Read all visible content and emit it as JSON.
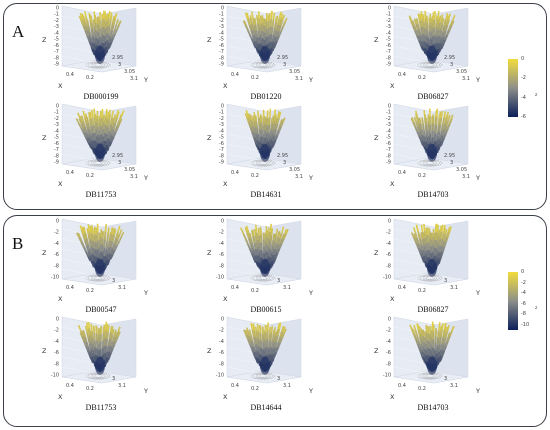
{
  "panels": [
    {
      "letter": "A",
      "colorbar": {
        "ticks": [
          "0",
          "-2",
          "-4",
          "-6"
        ],
        "ticks_full": [
          0,
          -2,
          -4,
          -6
        ],
        "label": "z",
        "range": [
          -6,
          0
        ]
      },
      "grid_axes": {
        "z_label": "Z",
        "x_label": "X",
        "y_label": "Y",
        "z_ticks": [
          "0",
          "-1",
          "-2",
          "-3",
          "-4",
          "-5",
          "-6",
          "-7",
          "-8",
          "-9"
        ],
        "x_ticks": [
          "0.4",
          "0.2"
        ],
        "y_ticks": [
          "2.95",
          "3",
          "3.05",
          "3.1"
        ]
      },
      "cells": [
        {
          "name": "DB000199"
        },
        {
          "name": "DB01220"
        },
        {
          "name": "DB06827"
        },
        {
          "name": "DB11753"
        },
        {
          "name": "DB14631"
        },
        {
          "name": "DB14703"
        }
      ]
    },
    {
      "letter": "B",
      "colorbar": {
        "ticks": [
          "0",
          "-2",
          "-4",
          "-6",
          "-8",
          "-10"
        ],
        "label": "z",
        "range": [
          -11,
          0
        ]
      },
      "grid_axes": {
        "z_label": "Z",
        "x_label": "X",
        "y_label": "Y",
        "z_ticks": [
          "0",
          "-2",
          "-4",
          "-6",
          "-8",
          "-10"
        ],
        "x_ticks": [
          "0.4",
          "0.2"
        ],
        "y_ticks": [
          "3",
          "3.1"
        ]
      },
      "cells": [
        {
          "name": "DB00547"
        },
        {
          "name": "DB00615"
        },
        {
          "name": "DB06827"
        },
        {
          "name": "DB11753"
        },
        {
          "name": "DB14644"
        },
        {
          "name": "DB14703"
        }
      ]
    }
  ],
  "colors": {
    "surface_top": "#f2dc3c",
    "surface_mid": "#8d8f8a",
    "surface_bottom": "#0b1f5a",
    "pane": "#e6ebf4",
    "frame": "#3a3f48"
  }
}
